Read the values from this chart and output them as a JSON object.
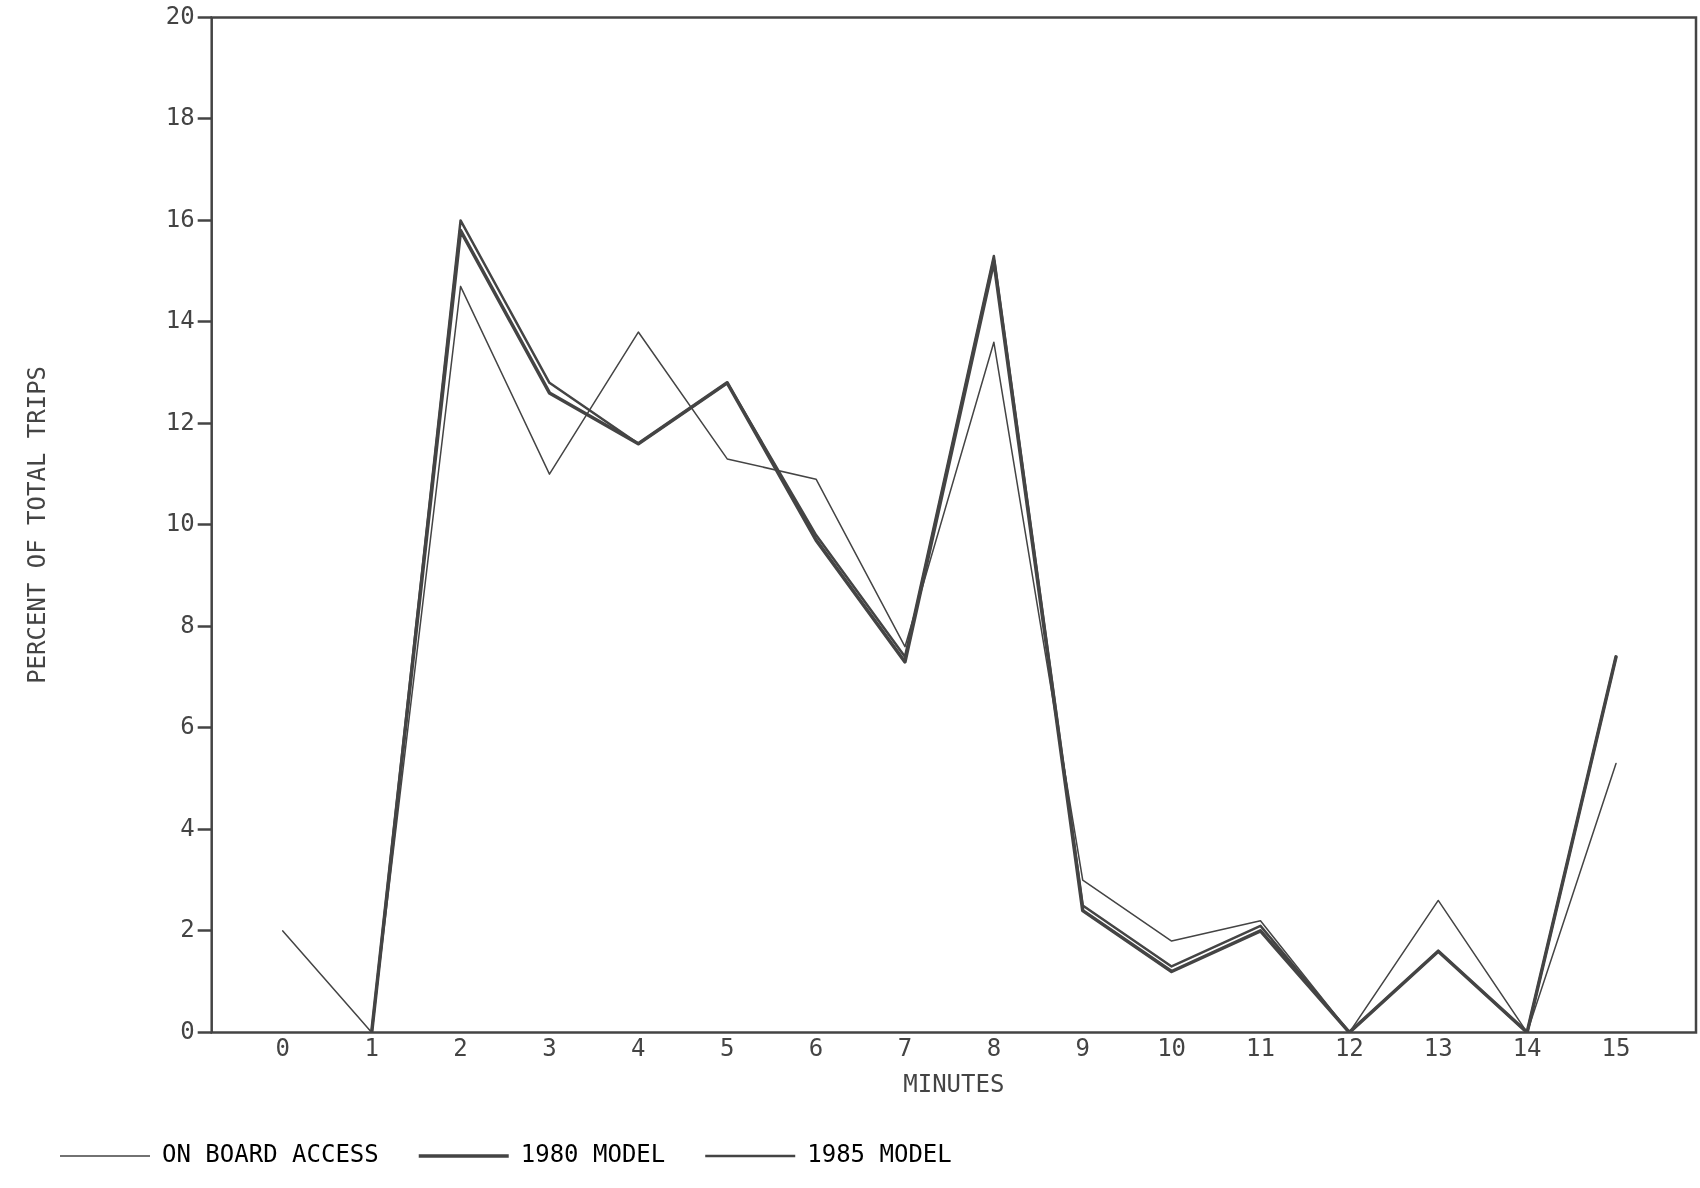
{
  "chart_data": {
    "type": "line",
    "xlabel": "MINUTES",
    "ylabel": "PERCENT OF TOTAL TRIPS",
    "x": [
      0,
      1,
      2,
      3,
      4,
      5,
      6,
      7,
      8,
      9,
      10,
      11,
      12,
      13,
      14,
      15
    ],
    "series": [
      {
        "name": "ON BOARD ACCESS",
        "color": "#444444",
        "values": [
          2,
          0,
          14.7,
          11,
          13.8,
          11.3,
          10.9,
          7.6,
          13.6,
          3.0,
          1.8,
          2.2,
          0,
          2.6,
          0,
          5.3
        ]
      },
      {
        "name": "1980 MODEL",
        "color": "#444444",
        "values": [
          null,
          0,
          15.8,
          12.6,
          11.6,
          12.8,
          9.7,
          7.3,
          15.2,
          2.4,
          1.2,
          2.0,
          0,
          1.6,
          0,
          7.4
        ]
      },
      {
        "name": "1985 MODEL",
        "color": "#444444",
        "values": [
          null,
          0,
          16.0,
          12.8,
          11.6,
          12.8,
          9.8,
          7.4,
          15.3,
          2.5,
          1.3,
          2.1,
          0,
          1.6,
          0,
          7.4
        ]
      }
    ],
    "xlim": [
      -0.8,
      15.9
    ],
    "xticks": [
      0,
      1,
      2,
      3,
      4,
      5,
      6,
      7,
      8,
      9,
      10,
      11,
      12,
      13,
      14,
      15
    ],
    "ylim": [
      0,
      20
    ],
    "yticks": [
      0,
      2,
      4,
      6,
      8,
      10,
      12,
      14,
      16,
      18,
      20
    ],
    "grid": false,
    "legend": "bottom",
    "marker": "none",
    "line_style": "solid"
  }
}
